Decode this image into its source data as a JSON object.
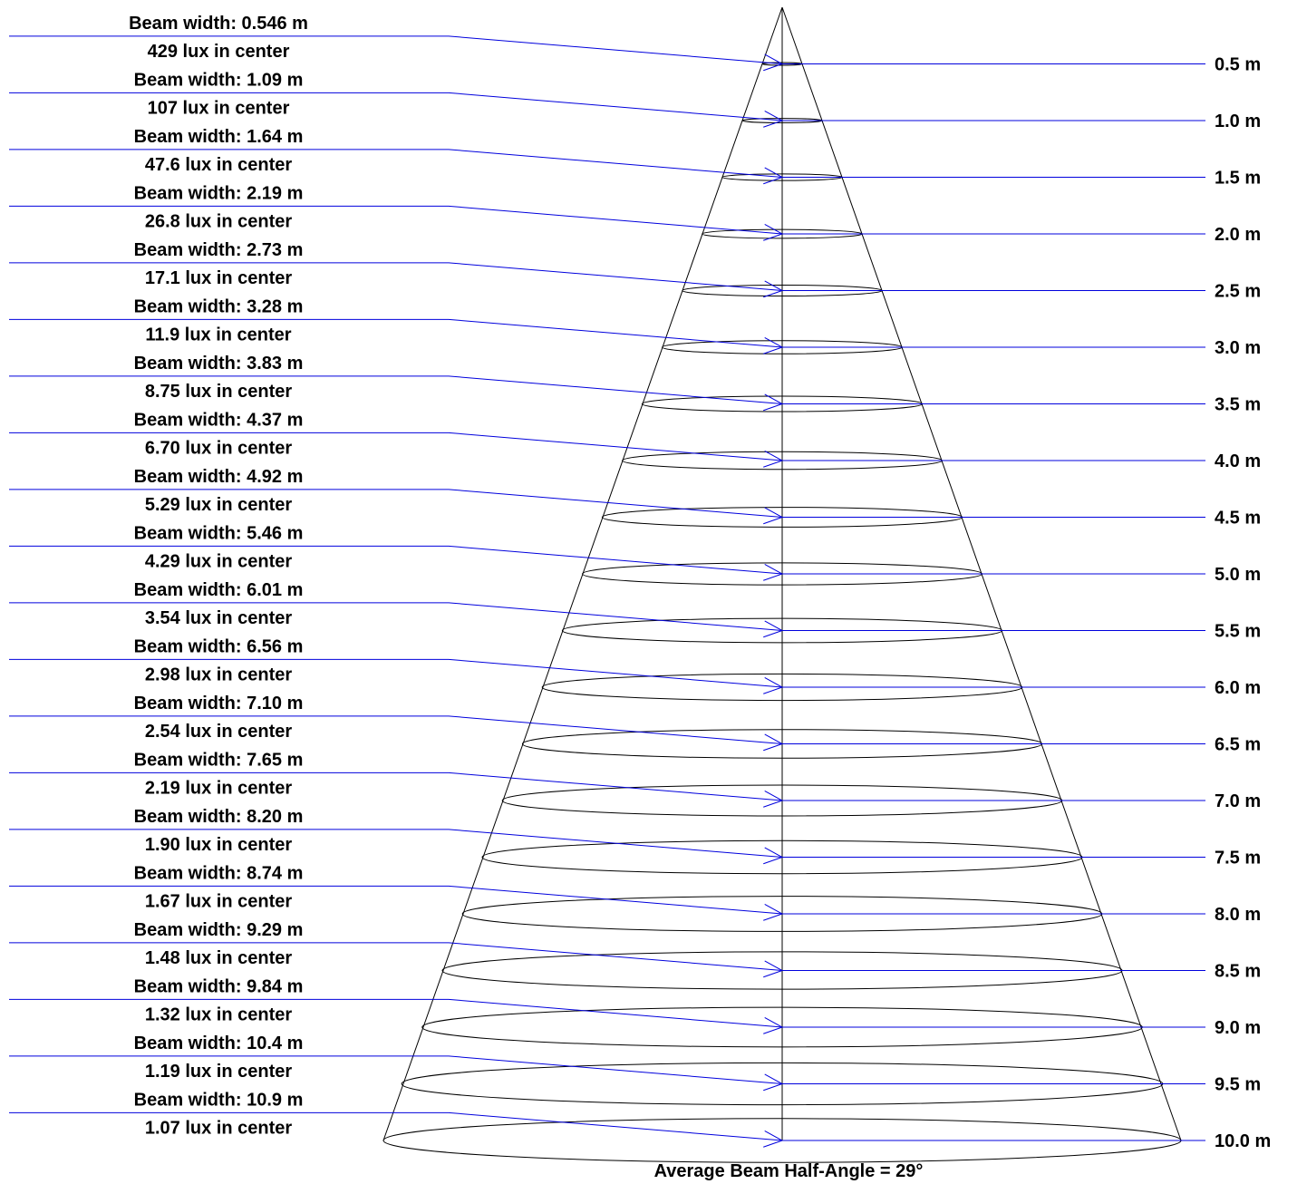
{
  "colors": {
    "cone": "#000000",
    "leader": "#0000dd",
    "text": "#000000",
    "background": "#ffffff"
  },
  "footer": {
    "text": "Average Beam Half-Angle = 29°"
  },
  "chart_data": {
    "type": "diagram",
    "description_units": {
      "distance": "m",
      "illuminance": "lux",
      "width": "m"
    },
    "half_angle_deg": 29,
    "levels": [
      {
        "distance": 0.5,
        "distance_label": "0.5 m",
        "lux": 429,
        "lux_label": "429 lux in center",
        "beam_width": 0.546,
        "beam_width_label": "Beam width: 0.546 m"
      },
      {
        "distance": 1.0,
        "distance_label": "1.0 m",
        "lux": 107,
        "lux_label": "107 lux in center",
        "beam_width": 1.09,
        "beam_width_label": "Beam width: 1.09 m"
      },
      {
        "distance": 1.5,
        "distance_label": "1.5 m",
        "lux": 47.6,
        "lux_label": "47.6 lux in center",
        "beam_width": 1.64,
        "beam_width_label": "Beam width: 1.64 m"
      },
      {
        "distance": 2.0,
        "distance_label": "2.0 m",
        "lux": 26.8,
        "lux_label": "26.8 lux in center",
        "beam_width": 2.19,
        "beam_width_label": "Beam width: 2.19 m"
      },
      {
        "distance": 2.5,
        "distance_label": "2.5 m",
        "lux": 17.1,
        "lux_label": "17.1 lux in center",
        "beam_width": 2.73,
        "beam_width_label": "Beam width: 2.73 m"
      },
      {
        "distance": 3.0,
        "distance_label": "3.0 m",
        "lux": 11.9,
        "lux_label": "11.9 lux in center",
        "beam_width": 3.28,
        "beam_width_label": "Beam width: 3.28 m"
      },
      {
        "distance": 3.5,
        "distance_label": "3.5 m",
        "lux": 8.75,
        "lux_label": "8.75 lux in center",
        "beam_width": 3.83,
        "beam_width_label": "Beam width: 3.83 m"
      },
      {
        "distance": 4.0,
        "distance_label": "4.0 m",
        "lux": 6.7,
        "lux_label": "6.70 lux in center",
        "beam_width": 4.37,
        "beam_width_label": "Beam width: 4.37 m"
      },
      {
        "distance": 4.5,
        "distance_label": "4.5 m",
        "lux": 5.29,
        "lux_label": "5.29 lux in center",
        "beam_width": 4.92,
        "beam_width_label": "Beam width: 4.92 m"
      },
      {
        "distance": 5.0,
        "distance_label": "5.0 m",
        "lux": 4.29,
        "lux_label": "4.29 lux in center",
        "beam_width": 5.46,
        "beam_width_label": "Beam width: 5.46 m"
      },
      {
        "distance": 5.5,
        "distance_label": "5.5 m",
        "lux": 3.54,
        "lux_label": "3.54 lux in center",
        "beam_width": 6.01,
        "beam_width_label": "Beam width: 6.01 m"
      },
      {
        "distance": 6.0,
        "distance_label": "6.0 m",
        "lux": 2.98,
        "lux_label": "2.98 lux in center",
        "beam_width": 6.56,
        "beam_width_label": "Beam width: 6.56 m"
      },
      {
        "distance": 6.5,
        "distance_label": "6.5 m",
        "lux": 2.54,
        "lux_label": "2.54 lux in center",
        "beam_width": 7.1,
        "beam_width_label": "Beam width: 7.10 m"
      },
      {
        "distance": 7.0,
        "distance_label": "7.0 m",
        "lux": 2.19,
        "lux_label": "2.19 lux in center",
        "beam_width": 7.65,
        "beam_width_label": "Beam width: 7.65 m"
      },
      {
        "distance": 7.5,
        "distance_label": "7.5 m",
        "lux": 1.9,
        "lux_label": "1.90 lux in center",
        "beam_width": 8.2,
        "beam_width_label": "Beam width: 8.20 m"
      },
      {
        "distance": 8.0,
        "distance_label": "8.0 m",
        "lux": 1.67,
        "lux_label": "1.67 lux in center",
        "beam_width": 8.74,
        "beam_width_label": "Beam width: 8.74 m"
      },
      {
        "distance": 8.5,
        "distance_label": "8.5 m",
        "lux": 1.48,
        "lux_label": "1.48 lux in center",
        "beam_width": 9.29,
        "beam_width_label": "Beam width: 9.29 m"
      },
      {
        "distance": 9.0,
        "distance_label": "9.0 m",
        "lux": 1.32,
        "lux_label": "1.32 lux in center",
        "beam_width": 9.84,
        "beam_width_label": "Beam width: 9.84 m"
      },
      {
        "distance": 9.5,
        "distance_label": "9.5 m",
        "lux": 1.19,
        "lux_label": "1.19 lux in center",
        "beam_width": 10.4,
        "beam_width_label": "Beam width: 10.4 m"
      },
      {
        "distance": 10.0,
        "distance_label": "10.0 m",
        "lux": 1.07,
        "lux_label": "1.07 lux in center",
        "beam_width": 10.9,
        "beam_width_label": "Beam width: 10.9 m"
      }
    ]
  }
}
